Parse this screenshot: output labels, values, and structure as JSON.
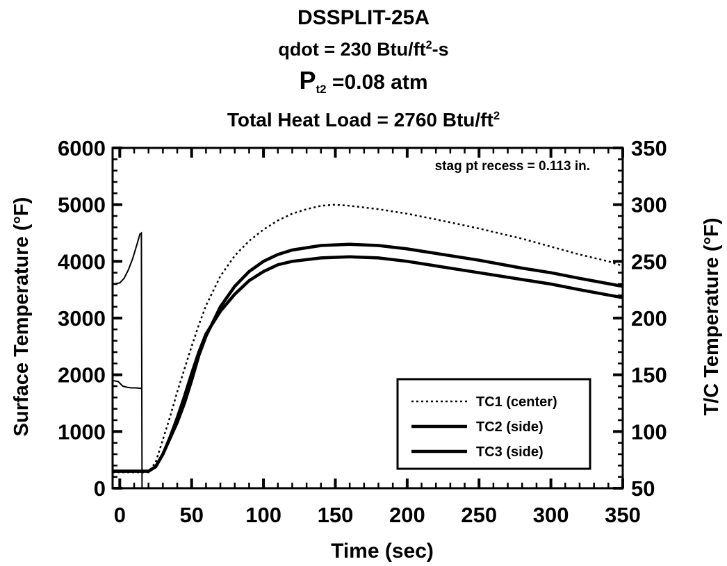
{
  "titles": {
    "title": "DSSPLIT-25A",
    "qdot_prefix": "qdot = 230 Btu/ft",
    "qdot_sup": "2",
    "qdot_suffix": "-s",
    "pressure_p": "P",
    "pressure_sub": "t2",
    "pressure_value": " =0.08 atm",
    "heat_load_prefix": "Total Heat Load = 2760 Btu/ft",
    "heat_load_sup": "2"
  },
  "chart_data": {
    "type": "line",
    "annotation": "stag pt recess = 0.113 in.",
    "xlabel": "Time (sec)",
    "ylabel_left": "Surface Temperature (°F)",
    "ylabel_right": "T/C Temperature (°F)",
    "xlim": [
      -5,
      350
    ],
    "ylim_left": [
      0,
      6000
    ],
    "ylim_right": [
      50,
      350
    ],
    "x_ticks": [
      0,
      50,
      100,
      150,
      200,
      250,
      300,
      350
    ],
    "y_ticks_left": [
      0,
      1000,
      2000,
      3000,
      4000,
      5000,
      6000
    ],
    "y_ticks_right": [
      50,
      100,
      150,
      200,
      250,
      300,
      350
    ],
    "legend_position": "bottom-right",
    "grid": false,
    "surface_series": [
      {
        "axis": "left",
        "x": [
          -5,
          0,
          3,
          6,
          9,
          12,
          14,
          15,
          15.5
        ],
        "y": [
          3600,
          3620,
          3700,
          3850,
          4050,
          4300,
          4480,
          4500,
          0
        ]
      },
      {
        "axis": "left",
        "x": [
          -5,
          -1,
          2,
          5,
          8,
          11,
          15
        ],
        "y": [
          1900,
          1880,
          1800,
          1780,
          1770,
          1770,
          1760
        ]
      }
    ],
    "series": [
      {
        "name": "TC1 (center)",
        "style": "dotted",
        "axis": "right",
        "x": [
          -5,
          20,
          25,
          30,
          35,
          40,
          45,
          50,
          55,
          60,
          70,
          80,
          90,
          100,
          110,
          120,
          130,
          140,
          150,
          160,
          180,
          200,
          220,
          250,
          280,
          300,
          320,
          340,
          350
        ],
        "y": [
          64,
          64,
          73,
          93,
          113,
          135,
          155,
          175,
          194,
          211,
          237,
          255,
          268,
          278,
          286,
          292,
          296,
          299,
          300,
          299,
          296,
          292,
          287,
          279,
          270,
          263,
          256,
          250,
          246
        ]
      },
      {
        "name": "TC2 (side)",
        "style": "solid",
        "axis": "right",
        "x": [
          -5,
          20,
          25,
          30,
          35,
          40,
          45,
          50,
          55,
          60,
          70,
          80,
          90,
          100,
          110,
          120,
          140,
          160,
          180,
          200,
          220,
          250,
          280,
          300,
          320,
          350
        ],
        "y": [
          65,
          65,
          69,
          80,
          94,
          108,
          125,
          145,
          167,
          184,
          210,
          228,
          241,
          250,
          256,
          260,
          264,
          265,
          264,
          261,
          257,
          251,
          244,
          240,
          235,
          228
        ]
      },
      {
        "name": "TC3 (side)",
        "style": "solid",
        "axis": "right",
        "x": [
          -5,
          20,
          25,
          30,
          35,
          40,
          45,
          50,
          55,
          60,
          70,
          80,
          90,
          100,
          110,
          120,
          140,
          160,
          180,
          200,
          220,
          250,
          280,
          300,
          320,
          350
        ],
        "y": [
          65,
          65,
          69,
          80,
          95,
          112,
          131,
          151,
          170,
          186,
          206,
          221,
          233,
          241,
          247,
          250,
          253,
          254,
          253,
          250,
          246,
          240,
          234,
          230,
          225,
          218
        ]
      }
    ]
  }
}
